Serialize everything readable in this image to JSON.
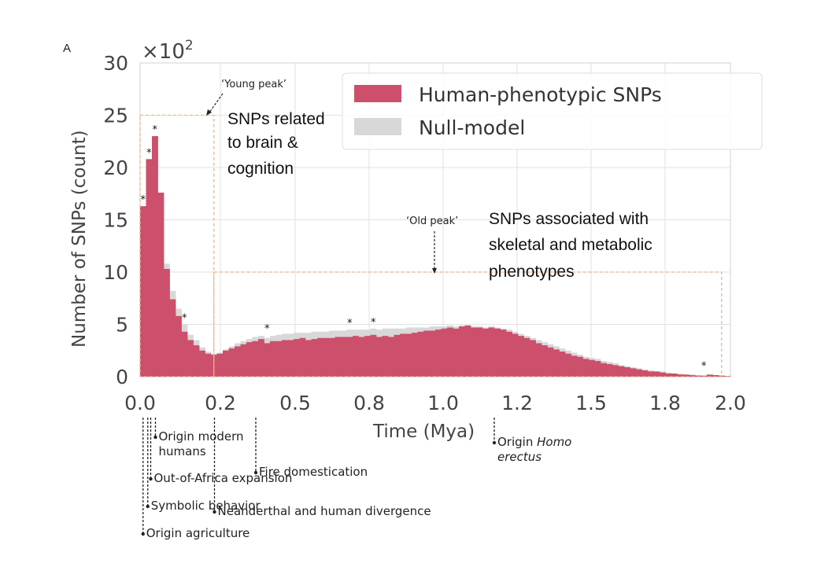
{
  "panel_label": "A",
  "chart_data": {
    "type": "bar",
    "xlabel": "Time (Mya)",
    "ylabel": "Number of SNPs (count)",
    "y_multiplier": "×10",
    "y_multiplier_exp": "2",
    "xlim": [
      0,
      2.0
    ],
    "ylim": [
      0,
      30
    ],
    "grid": true,
    "legend_position": "top-right",
    "x_ticks": [
      "0.0",
      "0.2",
      "0.5",
      "0.8",
      "1.0",
      "1.2",
      "1.5",
      "1.8",
      "2.0"
    ],
    "y_ticks": [
      "0",
      "5",
      "10",
      "15",
      "20",
      "25",
      "30"
    ],
    "series": [
      {
        "name": "Human-phenotypic SNPs",
        "color": "#cc4f6c",
        "points": [
          [
            0.0,
            16.3
          ],
          [
            0.01,
            20.8
          ],
          [
            0.02,
            23.0
          ],
          [
            0.03,
            17.6
          ],
          [
            0.04,
            10.3
          ],
          [
            0.05,
            7.4
          ],
          [
            0.06,
            5.8
          ],
          [
            0.07,
            4.3
          ],
          [
            0.08,
            3.5
          ],
          [
            0.09,
            3.0
          ],
          [
            0.1,
            2.5
          ],
          [
            0.11,
            2.2
          ],
          [
            0.12,
            2.1
          ],
          [
            0.13,
            2.2
          ],
          [
            0.14,
            2.5
          ],
          [
            0.15,
            2.7
          ],
          [
            0.16,
            2.9
          ],
          [
            0.17,
            3.1
          ],
          [
            0.18,
            3.3
          ],
          [
            0.19,
            3.4
          ],
          [
            0.2,
            3.6
          ],
          [
            0.21,
            3.2
          ],
          [
            0.22,
            3.4
          ],
          [
            0.23,
            3.4
          ],
          [
            0.24,
            3.5
          ],
          [
            0.25,
            3.5
          ],
          [
            0.26,
            3.6
          ],
          [
            0.27,
            3.7
          ],
          [
            0.28,
            3.5
          ],
          [
            0.29,
            3.6
          ],
          [
            0.3,
            3.7
          ],
          [
            0.31,
            3.7
          ],
          [
            0.32,
            3.7
          ],
          [
            0.33,
            3.8
          ],
          [
            0.34,
            3.8
          ],
          [
            0.35,
            3.8
          ],
          [
            0.36,
            3.9
          ],
          [
            0.37,
            3.8
          ],
          [
            0.38,
            3.9
          ],
          [
            0.39,
            4.0
          ],
          [
            0.4,
            3.8
          ],
          [
            0.41,
            3.9
          ],
          [
            0.42,
            3.8
          ],
          [
            0.43,
            4.0
          ],
          [
            0.44,
            4.1
          ],
          [
            0.45,
            4.1
          ],
          [
            0.46,
            4.2
          ],
          [
            0.47,
            4.3
          ],
          [
            0.48,
            4.4
          ],
          [
            0.49,
            4.4
          ],
          [
            0.5,
            4.5
          ],
          [
            0.51,
            4.6
          ],
          [
            0.52,
            4.7
          ],
          [
            0.53,
            4.6
          ],
          [
            0.54,
            4.8
          ],
          [
            0.55,
            4.9
          ],
          [
            0.56,
            4.7
          ],
          [
            0.57,
            4.7
          ],
          [
            0.58,
            4.6
          ],
          [
            0.59,
            4.7
          ],
          [
            0.6,
            4.6
          ],
          [
            0.61,
            4.5
          ],
          [
            0.62,
            4.3
          ],
          [
            0.63,
            4.1
          ],
          [
            0.64,
            3.9
          ],
          [
            0.65,
            3.7
          ],
          [
            0.66,
            3.5
          ],
          [
            0.67,
            3.2
          ],
          [
            0.68,
            3.0
          ],
          [
            0.69,
            2.8
          ],
          [
            0.7,
            2.6
          ],
          [
            0.71,
            2.4
          ],
          [
            0.72,
            2.2
          ],
          [
            0.73,
            2.0
          ],
          [
            0.74,
            1.9
          ],
          [
            0.75,
            1.7
          ],
          [
            0.76,
            1.6
          ],
          [
            0.77,
            1.5
          ],
          [
            0.78,
            1.3
          ],
          [
            0.79,
            1.2
          ],
          [
            0.8,
            1.1
          ],
          [
            0.81,
            1.0
          ],
          [
            0.82,
            0.9
          ],
          [
            0.83,
            0.8
          ],
          [
            0.84,
            0.7
          ],
          [
            0.85,
            0.6
          ],
          [
            0.86,
            0.5
          ],
          [
            0.87,
            0.5
          ],
          [
            0.88,
            0.4
          ],
          [
            0.89,
            0.3
          ],
          [
            0.9,
            0.3
          ],
          [
            0.91,
            0.2
          ],
          [
            0.92,
            0.2
          ],
          [
            0.93,
            0.15
          ],
          [
            0.94,
            0.1
          ],
          [
            0.95,
            0.1
          ],
          [
            0.96,
            0.2
          ],
          [
            0.97,
            0.15
          ],
          [
            0.98,
            0.1
          ],
          [
            0.99,
            0.05
          ]
        ]
      },
      {
        "name": "Null-model",
        "color": "#d8d8d8",
        "points": [
          [
            0.0,
            16.3
          ],
          [
            0.01,
            20.8
          ],
          [
            0.02,
            23.0
          ],
          [
            0.03,
            17.6
          ],
          [
            0.04,
            10.8
          ],
          [
            0.05,
            8.2
          ],
          [
            0.06,
            6.5
          ],
          [
            0.07,
            5.0
          ],
          [
            0.08,
            4.0
          ],
          [
            0.09,
            3.5
          ],
          [
            0.1,
            2.8
          ],
          [
            0.11,
            2.4
          ],
          [
            0.12,
            2.2
          ],
          [
            0.13,
            2.3
          ],
          [
            0.14,
            2.6
          ],
          [
            0.15,
            2.9
          ],
          [
            0.16,
            3.2
          ],
          [
            0.17,
            3.4
          ],
          [
            0.18,
            3.6
          ],
          [
            0.19,
            3.8
          ],
          [
            0.2,
            3.9
          ],
          [
            0.21,
            3.7
          ],
          [
            0.22,
            3.9
          ],
          [
            0.23,
            4.0
          ],
          [
            0.24,
            4.1
          ],
          [
            0.25,
            4.1
          ],
          [
            0.26,
            4.2
          ],
          [
            0.27,
            4.2
          ],
          [
            0.28,
            4.2
          ],
          [
            0.29,
            4.3
          ],
          [
            0.3,
            4.3
          ],
          [
            0.31,
            4.3
          ],
          [
            0.32,
            4.4
          ],
          [
            0.33,
            4.4
          ],
          [
            0.34,
            4.4
          ],
          [
            0.35,
            4.5
          ],
          [
            0.36,
            4.5
          ],
          [
            0.37,
            4.5
          ],
          [
            0.38,
            4.5
          ],
          [
            0.39,
            4.6
          ],
          [
            0.4,
            4.5
          ],
          [
            0.41,
            4.6
          ],
          [
            0.42,
            4.6
          ],
          [
            0.43,
            4.6
          ],
          [
            0.44,
            4.6
          ],
          [
            0.45,
            4.7
          ],
          [
            0.46,
            4.7
          ],
          [
            0.47,
            4.7
          ],
          [
            0.48,
            4.7
          ],
          [
            0.49,
            4.8
          ],
          [
            0.5,
            4.8
          ],
          [
            0.51,
            4.8
          ],
          [
            0.52,
            4.9
          ],
          [
            0.53,
            4.8
          ],
          [
            0.54,
            4.9
          ],
          [
            0.55,
            4.9
          ],
          [
            0.56,
            4.8
          ],
          [
            0.57,
            4.8
          ],
          [
            0.58,
            4.7
          ],
          [
            0.59,
            4.8
          ],
          [
            0.6,
            4.7
          ],
          [
            0.61,
            4.6
          ],
          [
            0.62,
            4.5
          ],
          [
            0.63,
            4.3
          ],
          [
            0.64,
            4.1
          ],
          [
            0.65,
            3.9
          ],
          [
            0.66,
            3.7
          ],
          [
            0.67,
            3.5
          ],
          [
            0.68,
            3.3
          ],
          [
            0.69,
            3.1
          ],
          [
            0.7,
            2.9
          ],
          [
            0.71,
            2.7
          ],
          [
            0.72,
            2.5
          ],
          [
            0.73,
            2.3
          ],
          [
            0.74,
            2.1
          ],
          [
            0.75,
            1.9
          ],
          [
            0.76,
            1.8
          ],
          [
            0.77,
            1.7
          ],
          [
            0.78,
            1.5
          ],
          [
            0.79,
            1.4
          ],
          [
            0.8,
            1.3
          ],
          [
            0.81,
            1.1
          ],
          [
            0.82,
            1.0
          ],
          [
            0.83,
            0.9
          ],
          [
            0.84,
            0.8
          ],
          [
            0.85,
            0.7
          ],
          [
            0.86,
            0.6
          ],
          [
            0.87,
            0.5
          ],
          [
            0.88,
            0.5
          ],
          [
            0.89,
            0.4
          ],
          [
            0.9,
            0.3
          ],
          [
            0.91,
            0.3
          ],
          [
            0.92,
            0.2
          ],
          [
            0.93,
            0.2
          ],
          [
            0.94,
            0.15
          ],
          [
            0.95,
            0.1
          ],
          [
            0.96,
            0.2
          ],
          [
            0.97,
            0.15
          ],
          [
            0.98,
            0.1
          ],
          [
            0.99,
            0.05
          ]
        ]
      }
    ],
    "stars": [
      [
        0.0,
        16.3
      ],
      [
        0.01,
        20.8
      ],
      [
        0.02,
        23.0
      ],
      [
        0.07,
        5.0
      ],
      [
        0.21,
        4.0
      ],
      [
        0.35,
        4.5
      ],
      [
        0.39,
        4.6
      ],
      [
        0.95,
        0.4
      ]
    ],
    "young_peak_box": {
      "x": [
        0,
        0.125
      ],
      "y": [
        0,
        25
      ]
    },
    "old_peak_box": {
      "x": [
        0.125,
        0.985
      ],
      "y": [
        0,
        10
      ]
    }
  },
  "peaks": {
    "young_tag": "‘Young peak’",
    "young_text": [
      "SNPs related",
      "to brain &",
      "cognition"
    ],
    "old_tag": "‘Old peak’",
    "old_text": [
      "SNPs associated with",
      "skeletal and metabolic",
      "phenotypes"
    ]
  },
  "events": [
    {
      "x": 0.005,
      "lines": [
        "Origin agriculture"
      ]
    },
    {
      "x": 0.013,
      "lines": [
        "Symbolic behavior"
      ]
    },
    {
      "x": 0.018,
      "lines": [
        "Out-of-Africa expansion"
      ]
    },
    {
      "x": 0.026,
      "lines": [
        "Origin modern",
        "humans"
      ]
    },
    {
      "x": 0.126,
      "lines": [
        "Neanderthal and human divergence"
      ]
    },
    {
      "x": 0.196,
      "lines": [
        "Fire domestication"
      ]
    },
    {
      "x": 0.6,
      "lines": [
        "Origin ",
        "erectus"
      ],
      "italic": "Homo"
    }
  ]
}
